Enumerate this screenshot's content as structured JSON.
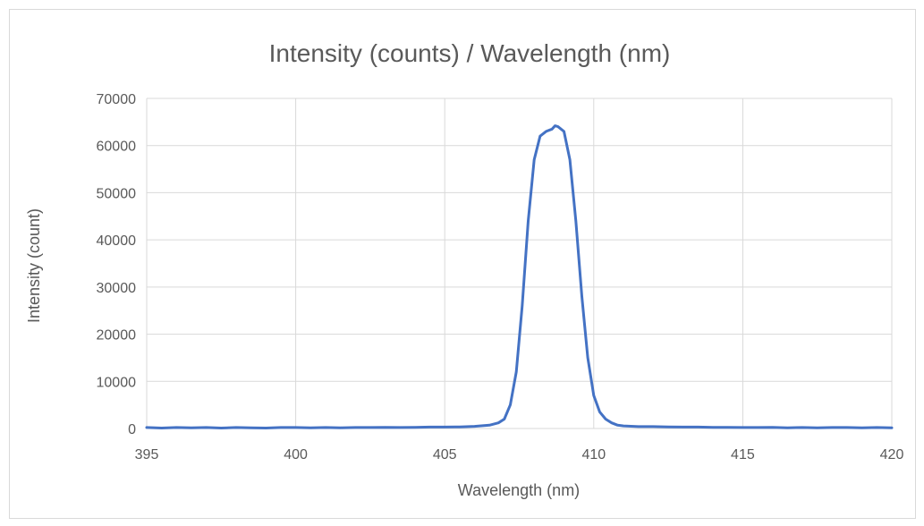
{
  "chart_data": {
    "type": "line",
    "title": "Intensity (counts) / Wavelength (nm)",
    "xlabel": "Wavelength (nm)",
    "ylabel": "Intensity (count)",
    "xlim": [
      395,
      420
    ],
    "ylim": [
      0,
      70000
    ],
    "x_ticks": [
      "395",
      "400",
      "405",
      "410",
      "415",
      "420"
    ],
    "y_ticks": [
      "0",
      "10000",
      "20000",
      "30000",
      "40000",
      "50000",
      "60000",
      "70000"
    ],
    "grid": true,
    "legend": "none",
    "series": [
      {
        "color": "#4472c4",
        "points": [
          [
            395.0,
            200
          ],
          [
            395.5,
            100
          ],
          [
            396.0,
            200
          ],
          [
            396.5,
            150
          ],
          [
            397.0,
            200
          ],
          [
            397.5,
            100
          ],
          [
            398.0,
            200
          ],
          [
            398.5,
            150
          ],
          [
            399.0,
            100
          ],
          [
            399.5,
            200
          ],
          [
            400.0,
            200
          ],
          [
            400.5,
            150
          ],
          [
            401.0,
            200
          ],
          [
            401.5,
            150
          ],
          [
            402.0,
            200
          ],
          [
            402.5,
            200
          ],
          [
            403.0,
            250
          ],
          [
            403.5,
            200
          ],
          [
            404.0,
            250
          ],
          [
            404.5,
            300
          ],
          [
            405.0,
            300
          ],
          [
            405.5,
            350
          ],
          [
            406.0,
            450
          ],
          [
            406.5,
            700
          ],
          [
            406.8,
            1200
          ],
          [
            407.0,
            2000
          ],
          [
            407.2,
            5000
          ],
          [
            407.4,
            12000
          ],
          [
            407.6,
            26000
          ],
          [
            407.8,
            44000
          ],
          [
            408.0,
            57000
          ],
          [
            408.2,
            62000
          ],
          [
            408.4,
            63000
          ],
          [
            408.6,
            63500
          ],
          [
            408.7,
            64200
          ],
          [
            408.8,
            64000
          ],
          [
            409.0,
            63000
          ],
          [
            409.2,
            57000
          ],
          [
            409.4,
            44000
          ],
          [
            409.6,
            28000
          ],
          [
            409.8,
            15000
          ],
          [
            410.0,
            7000
          ],
          [
            410.2,
            3500
          ],
          [
            410.4,
            2000
          ],
          [
            410.6,
            1200
          ],
          [
            410.8,
            700
          ],
          [
            411.0,
            550
          ],
          [
            411.5,
            400
          ],
          [
            412.0,
            400
          ],
          [
            412.5,
            350
          ],
          [
            413.0,
            300
          ],
          [
            413.5,
            300
          ],
          [
            414.0,
            250
          ],
          [
            414.5,
            250
          ],
          [
            415.0,
            200
          ],
          [
            415.5,
            200
          ],
          [
            416.0,
            250
          ],
          [
            416.5,
            150
          ],
          [
            417.0,
            200
          ],
          [
            417.5,
            150
          ],
          [
            418.0,
            200
          ],
          [
            418.5,
            200
          ],
          [
            419.0,
            150
          ],
          [
            419.5,
            200
          ],
          [
            420.0,
            150
          ]
        ]
      }
    ]
  }
}
